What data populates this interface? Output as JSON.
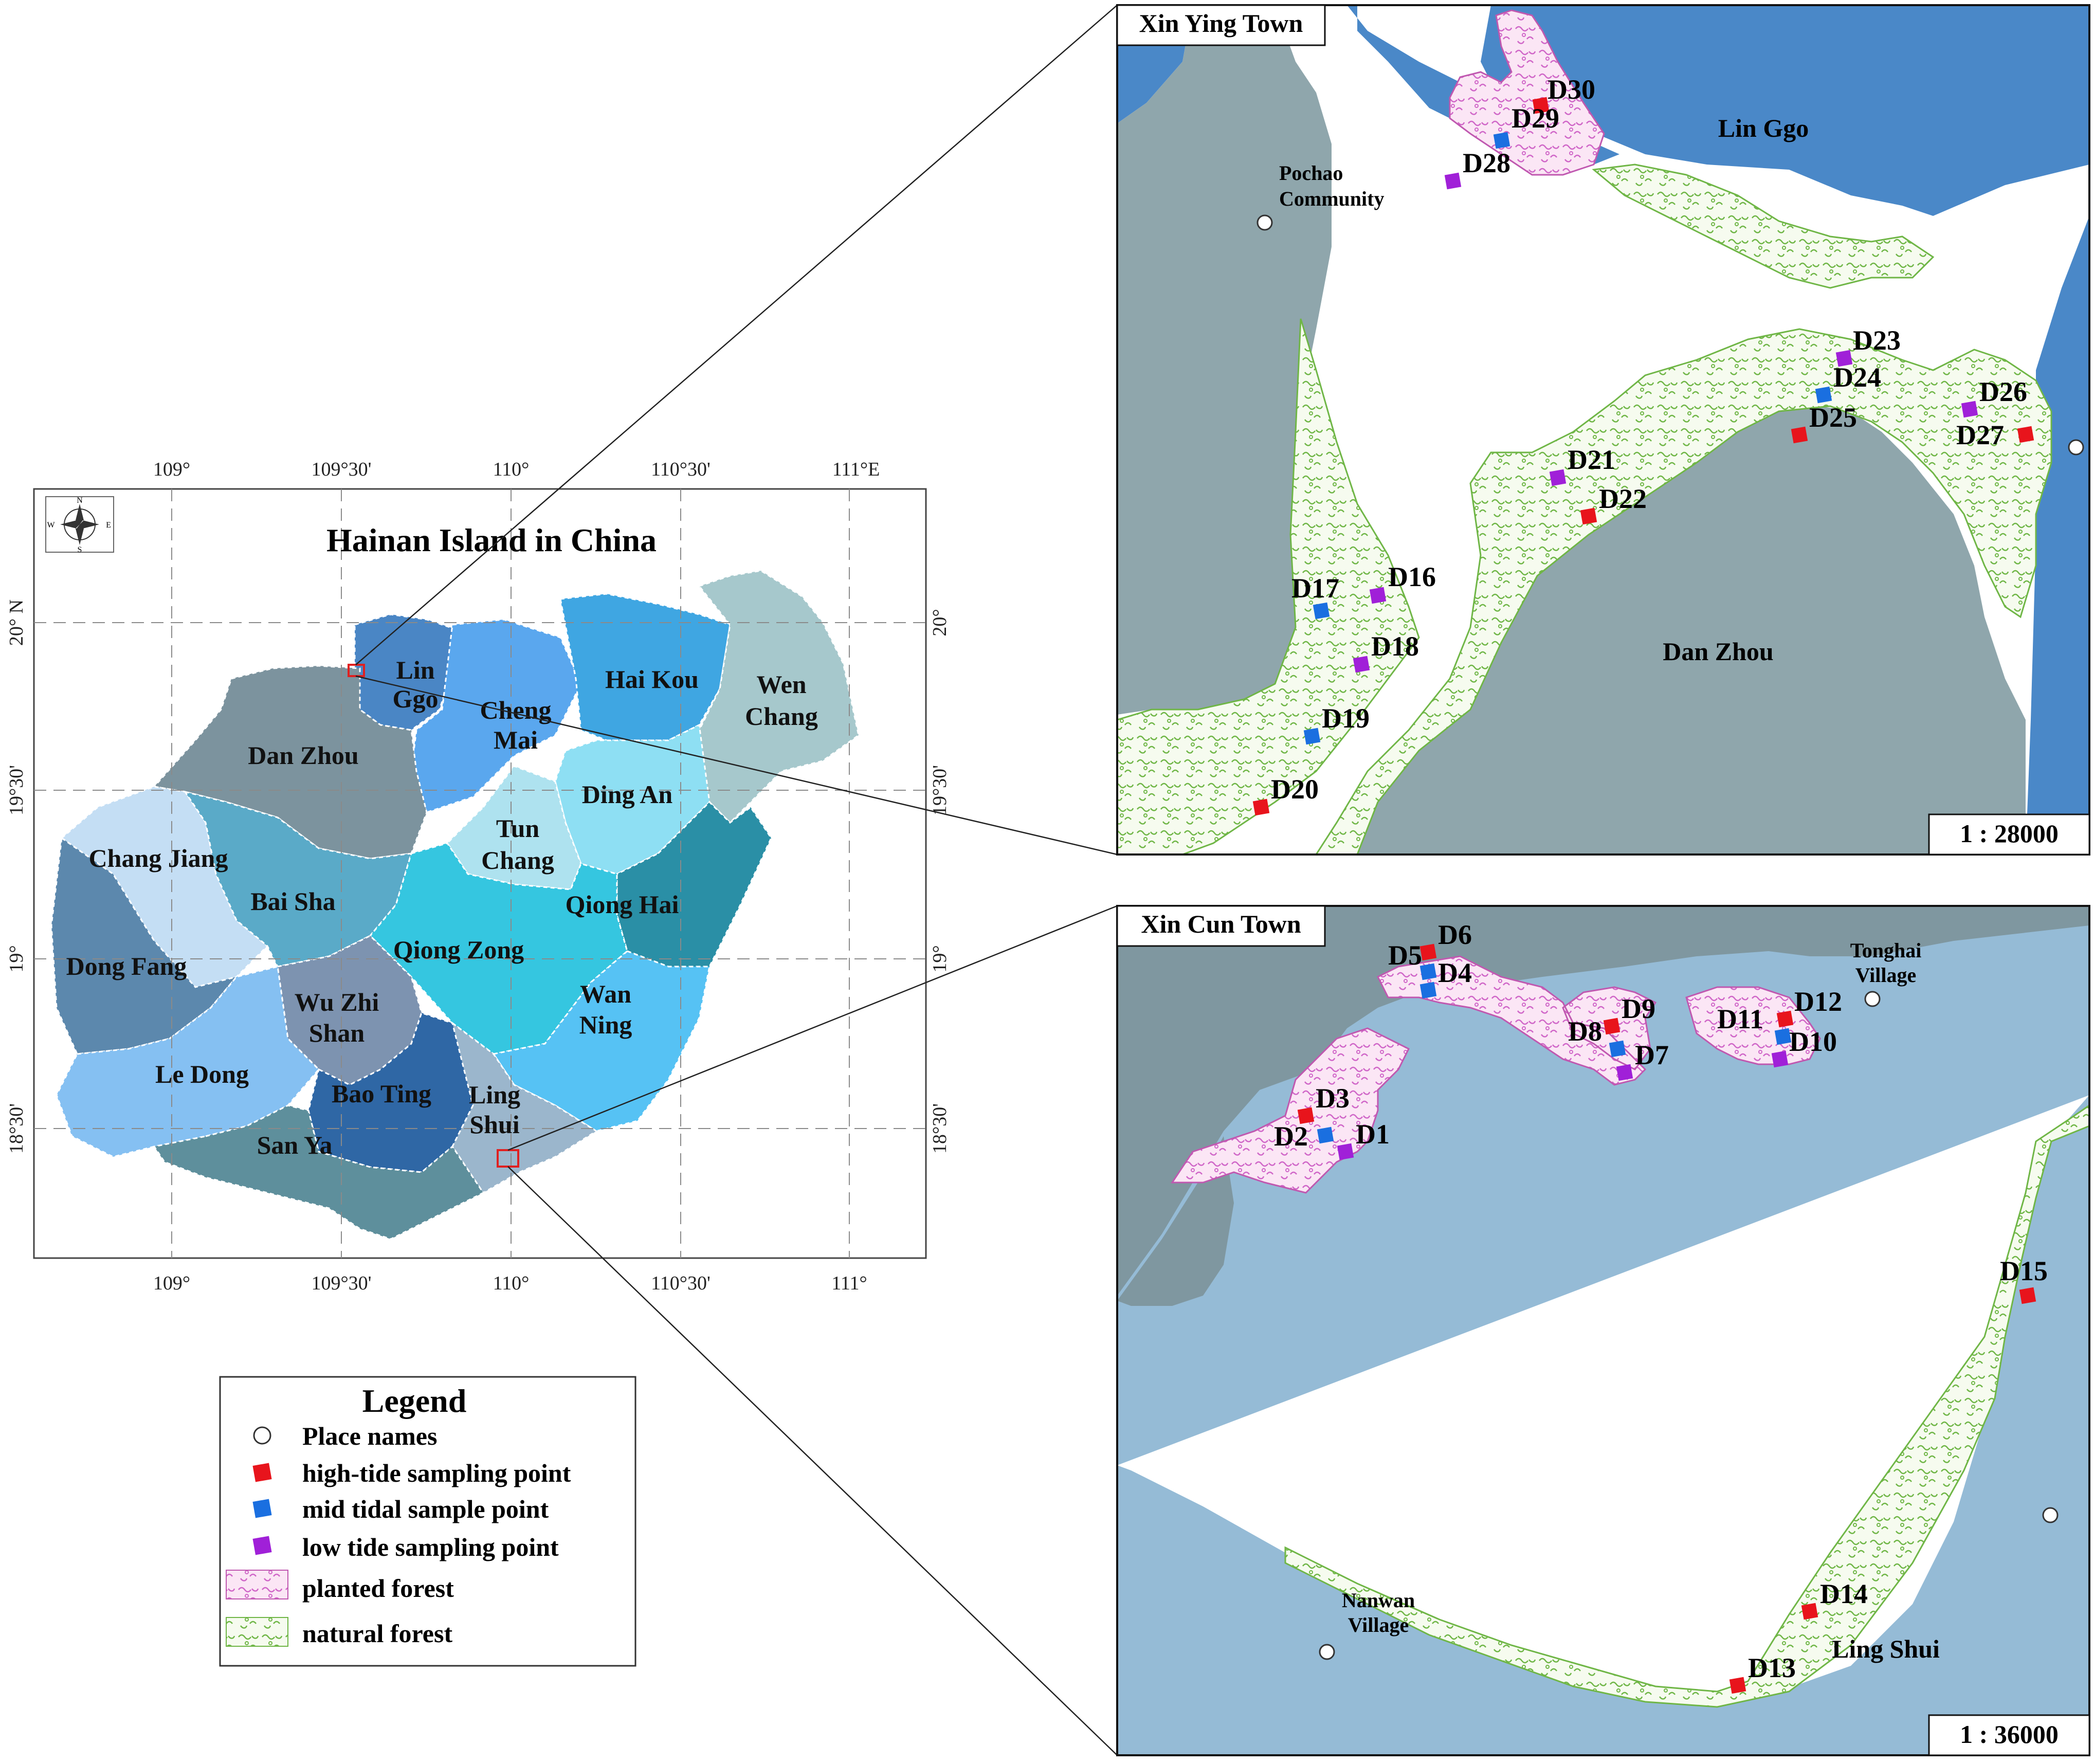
{
  "main_map": {
    "title": "Hainan Island in China",
    "top_ticks": [
      "109°",
      "109°30'",
      "110°",
      "110°30'",
      "111°E"
    ],
    "bottom_ticks": [
      "109°",
      "109°30'",
      "110°",
      "110°30'",
      "111°"
    ],
    "left_ticks": [
      "20° N",
      "19°30'",
      "19°",
      "18°30'"
    ],
    "right_ticks": [
      "20°",
      "19°30'",
      "19°",
      "18°30'"
    ],
    "compass": {
      "n": "N",
      "s": "S",
      "e": "E",
      "w": "W"
    },
    "regions": [
      {
        "name": "Lin Ggo",
        "lines": [
          "Lin",
          "Ggo"
        ],
        "color": "#4a86c5"
      },
      {
        "name": "Cheng Mai",
        "lines": [
          "Cheng",
          "Mai"
        ],
        "color": "#5aa7ee"
      },
      {
        "name": "Hai Kou",
        "lines": [
          "Hai Kou"
        ],
        "color": "#3fa6e2"
      },
      {
        "name": "Wen Chang",
        "lines": [
          "Wen",
          "Chang"
        ],
        "color": "#a6c8cc"
      },
      {
        "name": "Dan Zhou",
        "lines": [
          "Dan Zhou"
        ],
        "color": "#7c939e"
      },
      {
        "name": "Ding An",
        "lines": [
          "Ding An"
        ],
        "color": "#8edff3"
      },
      {
        "name": "Tun Chang",
        "lines": [
          "Tun",
          "Chang"
        ],
        "color": "#aee2ef"
      },
      {
        "name": "Chang Jiang",
        "lines": [
          "Chang Jiang"
        ],
        "color": "#c4def4"
      },
      {
        "name": "Bai Sha",
        "lines": [
          "Bai Sha"
        ],
        "color": "#5aaac8"
      },
      {
        "name": "Qiong Hai",
        "lines": [
          "Qiong Hai"
        ],
        "color": "#2a8fa6"
      },
      {
        "name": "Qiong Zong",
        "lines": [
          "Qiong Zong"
        ],
        "color": "#35c6e0"
      },
      {
        "name": "Dong Fang",
        "lines": [
          "Dong Fang"
        ],
        "color": "#5c88ad"
      },
      {
        "name": "Wu Zhi Shan",
        "lines": [
          "Wu Zhi",
          "Shan"
        ],
        "color": "#7d93b0"
      },
      {
        "name": "Wan Ning",
        "lines": [
          "Wan",
          "Ning"
        ],
        "color": "#56c2f4"
      },
      {
        "name": "Le Dong",
        "lines": [
          "Le Dong"
        ],
        "color": "#85c0f2"
      },
      {
        "name": "Bao Ting",
        "lines": [
          "Bao Ting"
        ],
        "color": "#2f67a5"
      },
      {
        "name": "Ling Shui",
        "lines": [
          "Ling",
          "Shui"
        ],
        "color": "#9bb6cc"
      },
      {
        "name": "San Ya",
        "lines": [
          "San Ya"
        ],
        "color": "#5e8f9c"
      }
    ]
  },
  "inset_north": {
    "title": "Xin Ying Town",
    "scale": "1 : 28000",
    "places": [
      {
        "name": "Pochao Community",
        "lines": [
          "Pochao",
          "Community"
        ]
      }
    ],
    "areas": [
      "Lin Ggo",
      "Dan Zhou"
    ],
    "points": [
      {
        "id": "D30",
        "type": "high"
      },
      {
        "id": "D29",
        "type": "mid"
      },
      {
        "id": "D28",
        "type": "low"
      },
      {
        "id": "D23",
        "type": "low"
      },
      {
        "id": "D24",
        "type": "mid"
      },
      {
        "id": "D25",
        "type": "high"
      },
      {
        "id": "D26",
        "type": "low"
      },
      {
        "id": "D27",
        "type": "high"
      },
      {
        "id": "D21",
        "type": "low"
      },
      {
        "id": "D22",
        "type": "high"
      },
      {
        "id": "D16",
        "type": "low"
      },
      {
        "id": "D17",
        "type": "mid"
      },
      {
        "id": "D18",
        "type": "low"
      },
      {
        "id": "D19",
        "type": "mid"
      },
      {
        "id": "D20",
        "type": "high"
      }
    ]
  },
  "inset_south": {
    "title": "Xin Cun Town",
    "scale": "1 : 36000",
    "places": [
      {
        "name": "Tonghai Village",
        "lines": [
          "Tonghai",
          "Village"
        ]
      },
      {
        "name": "Nanwan Village",
        "lines": [
          "Nanwan",
          "Village"
        ]
      }
    ],
    "areas": [
      "Ling Shui"
    ],
    "points": [
      {
        "id": "D6",
        "type": "high"
      },
      {
        "id": "D5",
        "type": "mid"
      },
      {
        "id": "D4",
        "type": "mid"
      },
      {
        "id": "D9",
        "type": "high"
      },
      {
        "id": "D8",
        "type": "mid"
      },
      {
        "id": "D7",
        "type": "low"
      },
      {
        "id": "D12",
        "type": "high"
      },
      {
        "id": "D11",
        "type": "mid"
      },
      {
        "id": "D10",
        "type": "low"
      },
      {
        "id": "D3",
        "type": "high"
      },
      {
        "id": "D2",
        "type": "mid"
      },
      {
        "id": "D1",
        "type": "low"
      },
      {
        "id": "D15",
        "type": "high"
      },
      {
        "id": "D14",
        "type": "high"
      },
      {
        "id": "D13",
        "type": "high"
      }
    ]
  },
  "legend": {
    "title": "Legend",
    "items": [
      {
        "label": "Place names",
        "symbol": "circle"
      },
      {
        "label": "high-tide sampling point",
        "symbol": "square",
        "color": "#e8141c"
      },
      {
        "label": "mid tidal sample point",
        "symbol": "square",
        "color": "#1a6fe0"
      },
      {
        "label": "low tide sampling point",
        "symbol": "square",
        "color": "#a020d8"
      },
      {
        "label": "planted forest",
        "symbol": "pattern-pink"
      },
      {
        "label": "natural forest",
        "symbol": "pattern-green"
      }
    ]
  },
  "colors": {
    "high": "#e8141c",
    "mid": "#1a6fe0",
    "low": "#a020d8",
    "sea_north": "#4a88c8",
    "land_north": "#8fa6ac",
    "sea_south": "#95bbd6",
    "land_south": "#7f97a0"
  }
}
